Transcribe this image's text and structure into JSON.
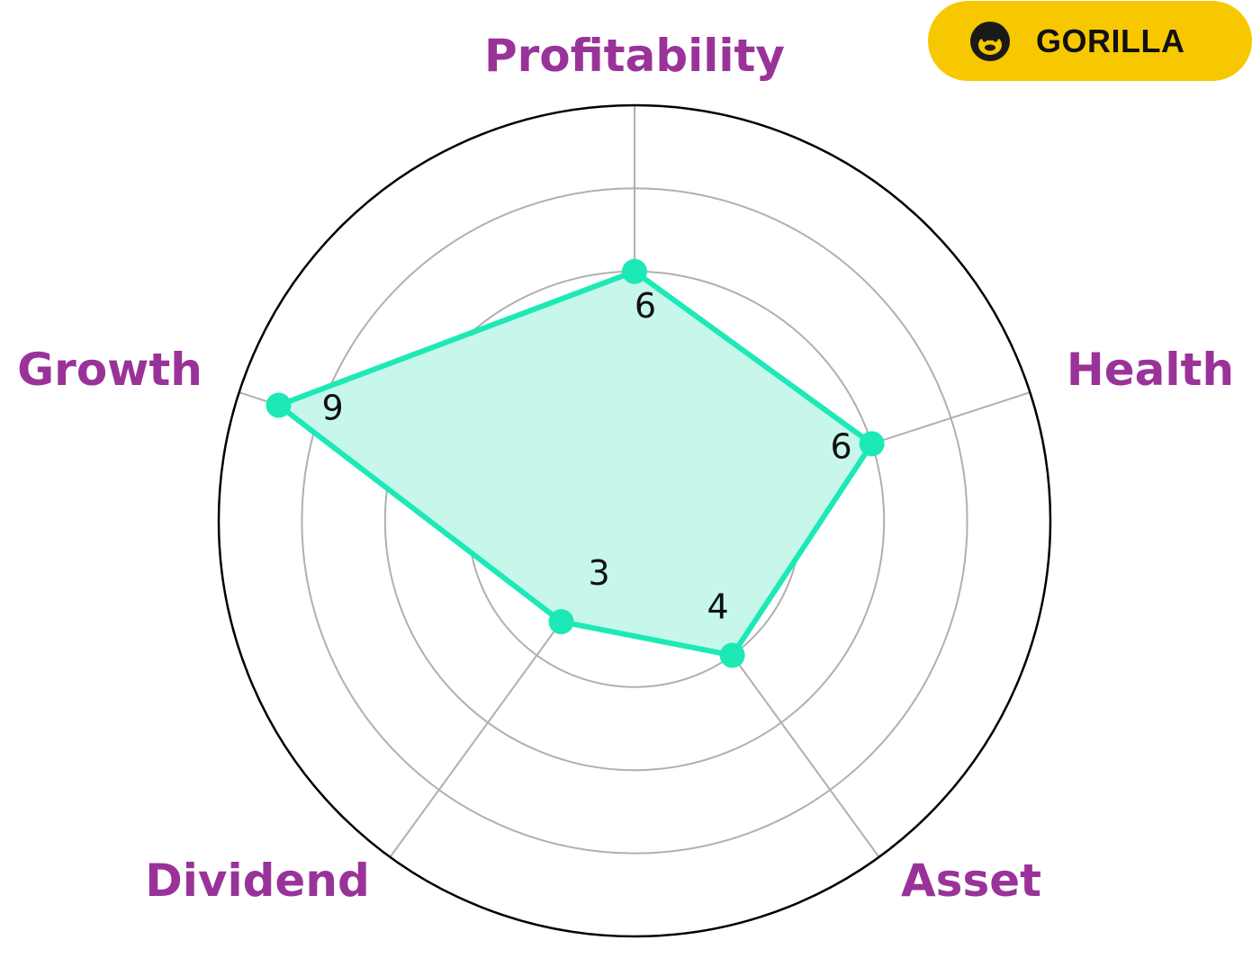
{
  "brand": {
    "name": "GORILLA",
    "badge_color": "#F7C800",
    "text_color": "#111111"
  },
  "colors": {
    "accent": "#1DE9B6",
    "fill": "#C6F7EA",
    "label": "#993399",
    "grid": "#B0B0B0",
    "frame": "#000000"
  },
  "chart_data": {
    "type": "radar",
    "title": "",
    "axes": [
      "Profitability",
      "Health",
      "Asset",
      "Dividend",
      "Growth"
    ],
    "series": [
      {
        "values": [
          6,
          6,
          4,
          3,
          9
        ]
      }
    ],
    "rlim": [
      0,
      10
    ],
    "ring_values": [
      2,
      4,
      6,
      8
    ],
    "grid": true
  }
}
